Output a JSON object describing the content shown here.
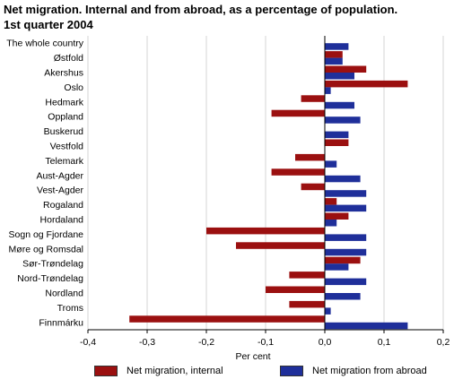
{
  "title_line1": "Net migration. Internal and from abroad, as a percentage of population.",
  "title_line2": "1st quarter 2004",
  "colors": {
    "internal": "#9b1010",
    "abroad": "#1f2f9a",
    "grid": "#d6d6d6",
    "axis": "#000000"
  },
  "chart_data": {
    "type": "bar",
    "orientation": "horizontal",
    "xlabel": "Per cent",
    "xlim": [
      -0.4,
      0.2
    ],
    "xticks": [
      -0.4,
      -0.3,
      -0.2,
      -0.1,
      0.0,
      0.1,
      0.2
    ],
    "xtick_labels": [
      "-0,4",
      "-0,3",
      "-0,2",
      "-0,1",
      "0,0",
      "0,1",
      "0,2"
    ],
    "grid": "vertical",
    "legend_position": "bottom",
    "categories": [
      "The whole country",
      "Østfold",
      "Akershus",
      "Oslo",
      "Hedmark",
      "Oppland",
      "Buskerud",
      "Vestfold",
      "Telemark",
      "Aust-Agder",
      "Vest-Agder",
      "Rogaland",
      "Hordaland",
      "Sogn og Fjordane",
      "Møre og Romsdal",
      "Sør-Trøndelag",
      "Nord-Trøndelag",
      "Nordland",
      "Troms",
      "Finnmárku"
    ],
    "series": [
      {
        "name": "Net migration, internal",
        "values": [
          0.0,
          0.03,
          0.07,
          0.14,
          -0.04,
          -0.09,
          0.0,
          0.04,
          -0.05,
          -0.09,
          -0.04,
          0.02,
          0.04,
          -0.2,
          -0.15,
          0.06,
          -0.06,
          -0.1,
          -0.06,
          -0.33
        ]
      },
      {
        "name": "Net migration from abroad",
        "values": [
          0.04,
          0.03,
          0.05,
          0.01,
          0.05,
          0.06,
          0.04,
          0.0,
          0.02,
          0.06,
          0.07,
          0.07,
          0.02,
          0.07,
          0.07,
          0.04,
          0.07,
          0.06,
          0.01,
          0.14
        ]
      }
    ]
  }
}
